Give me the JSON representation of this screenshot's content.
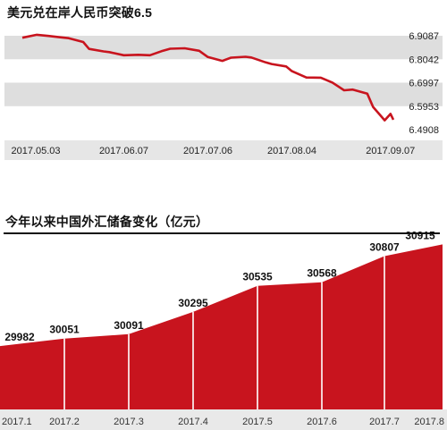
{
  "chart_data": [
    {
      "type": "line",
      "title": "美元兑在岸人民币突破6.5",
      "x_ticks": [
        "2017.05.03",
        "2017.06.07",
        "2017.07.06",
        "2017.08.04",
        "2017.09.07"
      ],
      "y_ticks": [
        "6.9087",
        "6.8042",
        "6.6997",
        "6.5953",
        "6.4908"
      ],
      "ylim": [
        6.4908,
        6.9087
      ],
      "x": [
        "2017.05.03",
        "2017.05.08",
        "2017.05.12",
        "2017.05.16",
        "2017.05.19",
        "2017.05.24",
        "2017.05.26",
        "2017.05.31",
        "2017.06.02",
        "2017.06.07",
        "2017.06.12",
        "2017.06.16",
        "2017.06.20",
        "2017.06.23",
        "2017.06.28",
        "2017.07.03",
        "2017.07.06",
        "2017.07.11",
        "2017.07.14",
        "2017.07.19",
        "2017.07.21",
        "2017.07.26",
        "2017.07.28",
        "2017.08.02",
        "2017.08.04",
        "2017.08.09",
        "2017.08.14",
        "2017.08.18",
        "2017.08.22",
        "2017.08.25",
        "2017.08.30",
        "2017.09.01",
        "2017.09.05",
        "2017.09.07",
        "2017.09.08"
      ],
      "values": [
        6.9,
        6.913,
        6.908,
        6.902,
        6.898,
        6.881,
        6.85,
        6.839,
        6.836,
        6.822,
        6.824,
        6.822,
        6.84,
        6.851,
        6.853,
        6.842,
        6.814,
        6.797,
        6.811,
        6.815,
        6.812,
        6.79,
        6.783,
        6.772,
        6.751,
        6.723,
        6.722,
        6.7,
        6.666,
        6.669,
        6.651,
        6.592,
        6.532,
        6.561,
        6.535
      ],
      "grid_bands": true,
      "line_color": "#c8141e"
    },
    {
      "type": "area",
      "title": "今年以来中国外汇储备变化（亿元）",
      "categories": [
        "2017.1",
        "2017.2",
        "2017.3",
        "2017.4",
        "2017.5",
        "2017.6",
        "2017.7",
        "2017.8"
      ],
      "values": [
        29982,
        30051,
        30091,
        30295,
        30535,
        30568,
        30807,
        30915
      ],
      "fill_color": "#c8141e",
      "ylim": [
        29400,
        31000
      ]
    }
  ]
}
